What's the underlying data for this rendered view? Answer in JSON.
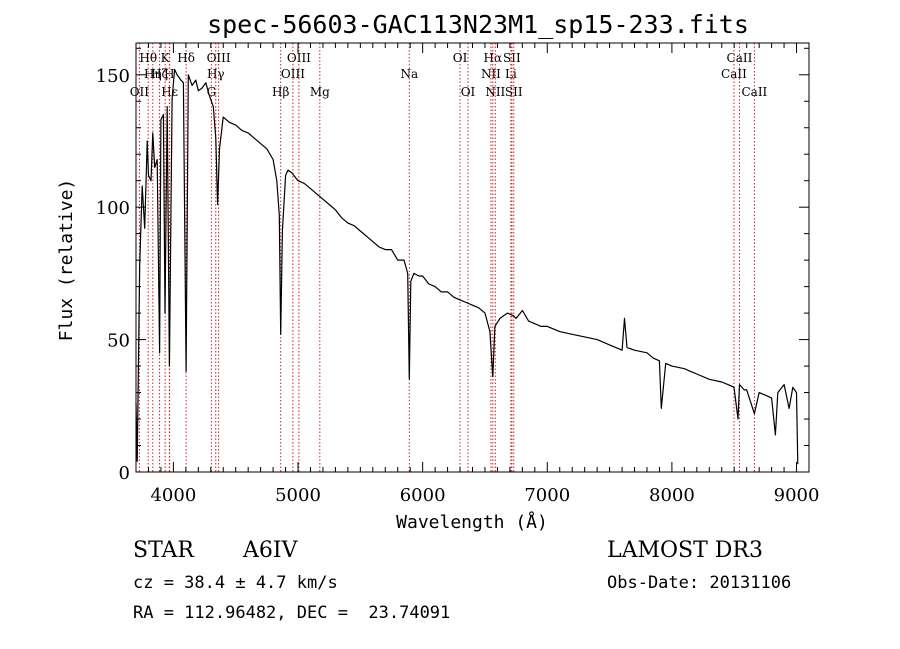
{
  "chart_data": {
    "type": "line",
    "title": "spec-56603-GAC113N23M1_sp15-233.fits",
    "xlabel": "Wavelength (Å)",
    "ylabel": "Flux (relative)",
    "xlim": [
      3700,
      9100
    ],
    "ylim": [
      0,
      162
    ],
    "xticks": [
      4000,
      5000,
      6000,
      7000,
      8000,
      9000
    ],
    "yticks": [
      0,
      50,
      100,
      150
    ],
    "series": [
      {
        "name": "flux",
        "x": [
          3700,
          3710,
          3730,
          3750,
          3770,
          3790,
          3800,
          3820,
          3835,
          3850,
          3870,
          3889,
          3900,
          3920,
          3933,
          3950,
          3968,
          3990,
          4010,
          4030,
          4060,
          4080,
          4102,
          4120,
          4150,
          4180,
          4200,
          4230,
          4260,
          4290,
          4320,
          4340,
          4355,
          4370,
          4400,
          4450,
          4500,
          4550,
          4600,
          4650,
          4700,
          4750,
          4800,
          4830,
          4850,
          4861,
          4875,
          4900,
          4920,
          4950,
          5000,
          5050,
          5100,
          5150,
          5200,
          5250,
          5300,
          5350,
          5400,
          5450,
          5500,
          5550,
          5600,
          5650,
          5700,
          5750,
          5800,
          5850,
          5880,
          5893,
          5905,
          5930,
          5970,
          6000,
          6050,
          6100,
          6150,
          6200,
          6250,
          6300,
          6350,
          6400,
          6450,
          6500,
          6540,
          6563,
          6580,
          6620,
          6680,
          6730,
          6750,
          6800,
          6850,
          6900,
          6950,
          7000,
          7100,
          7200,
          7300,
          7400,
          7500,
          7600,
          7620,
          7640,
          7700,
          7800,
          7850,
          7900,
          7915,
          7950,
          8000,
          8100,
          8150,
          8200,
          8300,
          8400,
          8450,
          8498,
          8530,
          8542,
          8580,
          8600,
          8662,
          8700,
          8750,
          8800,
          8830,
          8850,
          8900,
          8940,
          8970,
          9000,
          9010
        ],
        "values": [
          26,
          4,
          78,
          108,
          92,
          125,
          112,
          110,
          128,
          115,
          118,
          45,
          133,
          135,
          60,
          138,
          40,
          141,
          152,
          150,
          148,
          147,
          38,
          150,
          146,
          148,
          144,
          145,
          147,
          142,
          138,
          126,
          101,
          122,
          134,
          132,
          131,
          129,
          128,
          126,
          124,
          122,
          118,
          110,
          97,
          52,
          91,
          112,
          114,
          113,
          110,
          109,
          107,
          105,
          103,
          101,
          99,
          96,
          94,
          93,
          91,
          89,
          87,
          85,
          84,
          84,
          80,
          80,
          75,
          35,
          72,
          75,
          74,
          74,
          71,
          70,
          68,
          68,
          66,
          65,
          64,
          63,
          62,
          60,
          53,
          36,
          55,
          58,
          60,
          59,
          58,
          61,
          57,
          56,
          55,
          55,
          53,
          52,
          51,
          50,
          48,
          46,
          58,
          47,
          46,
          45,
          43,
          42,
          24,
          41,
          40,
          39,
          38,
          37,
          35,
          34,
          33,
          32,
          20,
          33,
          31,
          31,
          22,
          30,
          29,
          28,
          14,
          30,
          33,
          24,
          32,
          30,
          3
        ]
      }
    ],
    "lines": [
      {
        "label": "Hθ",
        "wl": 3798,
        "row": 1
      },
      {
        "label": "OII",
        "wl": 3727,
        "row": 3
      },
      {
        "label": "Hη",
        "wl": 3835,
        "row": 2
      },
      {
        "label": "Hζ",
        "wl": 3889,
        "row": 2
      },
      {
        "label": "Hε",
        "wl": 3970,
        "row": 3
      },
      {
        "label": "K",
        "wl": 3934,
        "row": 1
      },
      {
        "label": "H",
        "wl": 3968,
        "row": 2
      },
      {
        "label": "Hδ",
        "wl": 4102,
        "row": 1
      },
      {
        "label": "Hγ",
        "wl": 4340,
        "row": 2
      },
      {
        "label": "G",
        "wl": 4305,
        "row": 3
      },
      {
        "label": "OIII",
        "wl": 4363,
        "row": 1
      },
      {
        "label": "Hβ",
        "wl": 4861,
        "row": 3
      },
      {
        "label": "OIII",
        "wl": 5007,
        "row": 1
      },
      {
        "label": "OIII",
        "wl": 4959,
        "row": 2
      },
      {
        "label": "Mg",
        "wl": 5175,
        "row": 3
      },
      {
        "label": "Na",
        "wl": 5893,
        "row": 2
      },
      {
        "label": "OI",
        "wl": 6300,
        "row": 1
      },
      {
        "label": "OI",
        "wl": 6364,
        "row": 3
      },
      {
        "label": "Hα",
        "wl": 6563,
        "row": 1
      },
      {
        "label": "NII",
        "wl": 6548,
        "row": 2
      },
      {
        "label": "NII",
        "wl": 6583,
        "row": 3
      },
      {
        "label": "SII",
        "wl": 6716,
        "row": 1
      },
      {
        "label": "Li",
        "wl": 6708,
        "row": 2
      },
      {
        "label": "SII",
        "wl": 6731,
        "row": 3
      },
      {
        "label": "CaII",
        "wl": 8542,
        "row": 1
      },
      {
        "label": "CaII",
        "wl": 8498,
        "row": 2
      },
      {
        "label": "CaII",
        "wl": 8662,
        "row": 3
      }
    ]
  },
  "info": {
    "class_label": "STAR",
    "subclass": "A6IV",
    "survey": "LAMOST DR3",
    "cz": "cz = 38.4 ± 4.7 km/s",
    "obs_date": "Obs-Date: 20131106",
    "coords": "RA = 112.96482, DEC =  23.74091"
  }
}
